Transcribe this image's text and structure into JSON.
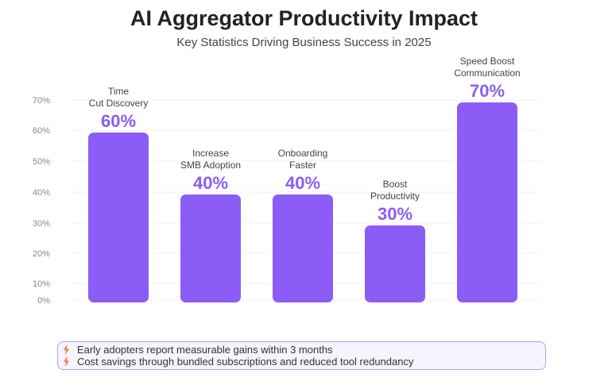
{
  "header": {
    "title": "AI Aggregator Productivity Impact",
    "subtitle": "Key Statistics Driving Business Success in 2025"
  },
  "chart_data": {
    "type": "bar",
    "categories": [
      "Time Cut Discovery",
      "Increase SMB Adoption",
      "Onboarding Faster",
      "Boost Productivity",
      "Speed Boost Communication"
    ],
    "category_lines": [
      [
        "Time",
        "Cut Discovery"
      ],
      [
        "Increase",
        "SMB Adoption"
      ],
      [
        "Onboarding",
        "Faster"
      ],
      [
        "Boost",
        "Productivity"
      ],
      [
        "Speed Boost",
        "Communication"
      ]
    ],
    "values": [
      60,
      40,
      40,
      30,
      70
    ],
    "value_labels": [
      "60%",
      "40%",
      "40%",
      "30%",
      "70%"
    ],
    "yticks": [
      0,
      10,
      20,
      30,
      40,
      50,
      60,
      70
    ],
    "ytick_labels": [
      "0%",
      "10%",
      "20%",
      "30%",
      "40%",
      "50%",
      "60%",
      "70%"
    ],
    "ylim": [
      0,
      70
    ],
    "grid": true,
    "legend": "none",
    "bar_color": "#8b5cf6",
    "label_color": "#8b5cf6"
  },
  "notes": {
    "icon": "lightning-bolt-icon",
    "icon_color": "#f07a3a",
    "items": [
      "Early adopters report measurable gains within 3 months",
      "Cost savings through bundled subscriptions and reduced tool redundancy"
    ]
  }
}
